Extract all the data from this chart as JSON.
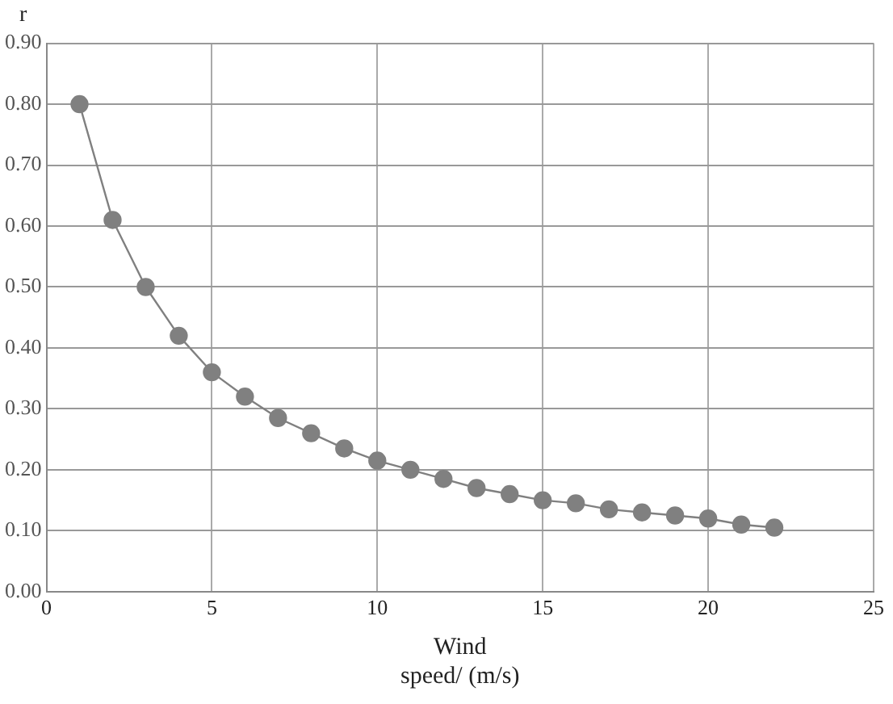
{
  "chart_data": {
    "type": "line",
    "xlabel": "Wind speed/ (m/s)",
    "ylabel": "r",
    "x": [
      1,
      2,
      3,
      4,
      5,
      6,
      7,
      8,
      9,
      10,
      11,
      12,
      13,
      14,
      15,
      16,
      17,
      18,
      19,
      20,
      21,
      22
    ],
    "series": [
      {
        "color": "#808080",
        "values": [
          0.8,
          0.61,
          0.5,
          0.42,
          0.36,
          0.32,
          0.285,
          0.26,
          0.235,
          0.215,
          0.2,
          0.185,
          0.17,
          0.16,
          0.15,
          0.145,
          0.135,
          0.13,
          0.125,
          0.12,
          0.11,
          0.105
        ]
      }
    ],
    "xlim": [
      0,
      25
    ],
    "xticks": [
      0,
      5,
      10,
      15,
      20,
      25
    ],
    "ylim": [
      0,
      0.9
    ],
    "yticks": [
      {
        "value": 0,
        "label": "0.00"
      },
      {
        "value": 0.1,
        "label": "0.10"
      },
      {
        "value": 0.2,
        "label": "0.20"
      },
      {
        "value": 0.3,
        "label": "0.30"
      },
      {
        "value": 0.4,
        "label": "0.40"
      },
      {
        "value": 0.5,
        "label": "0.50"
      },
      {
        "value": 0.6,
        "label": "0.60"
      },
      {
        "value": 0.7,
        "label": "0.70"
      },
      {
        "value": 0.8,
        "label": "0.80"
      },
      {
        "value": 0.9,
        "label": "0.90"
      }
    ],
    "grid": true,
    "marker": "circle",
    "line_style": "solid",
    "legend": false
  }
}
